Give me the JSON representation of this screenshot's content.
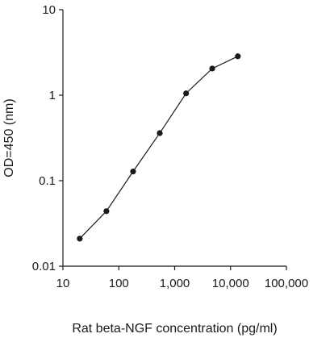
{
  "chart_data": {
    "type": "scatter",
    "title": "",
    "xlabel": "Rat beta-NGF concentration (pg/ml)",
    "ylabel": "OD=450 (nm)",
    "xscale": "log",
    "yscale": "log",
    "xlim": [
      10,
      100000
    ],
    "ylim": [
      0.01,
      10
    ],
    "grid": false,
    "legend": "none",
    "xticks": [
      10,
      100,
      1000,
      10000,
      100000
    ],
    "xtick_labels": [
      "10",
      "100",
      "1,000",
      "10,000",
      "100,000"
    ],
    "yticks": [
      0.01,
      0.1,
      1,
      10
    ],
    "ytick_labels": [
      "0.01",
      "0.1",
      "1",
      "10"
    ],
    "series": [
      {
        "x": [
          20,
          60,
          180,
          540,
          1600,
          4700,
          13500
        ],
        "y": [
          0.021,
          0.044,
          0.128,
          0.36,
          1.05,
          2.05,
          2.85
        ],
        "style": "line-markers",
        "color": "#1a1a1a"
      }
    ]
  }
}
